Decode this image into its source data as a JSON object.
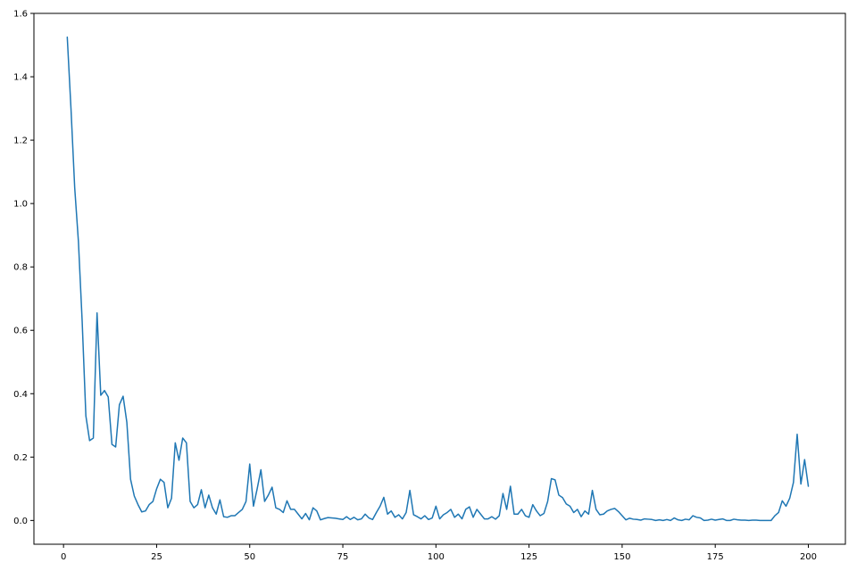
{
  "chart_data": {
    "type": "line",
    "title": "",
    "xlabel": "",
    "ylabel": "",
    "xlim": [
      -7.95,
      209.95
    ],
    "ylim": [
      -0.075,
      1.6
    ],
    "xticks": [
      0,
      25,
      50,
      75,
      100,
      125,
      150,
      175,
      200
    ],
    "yticks": [
      0.0,
      0.2,
      0.4,
      0.6,
      0.8,
      1.0,
      1.2,
      1.4,
      1.6
    ],
    "ytick_labels": [
      "0.0",
      "0.2",
      "0.4",
      "0.6",
      "0.8",
      "1.0",
      "1.2",
      "1.4",
      "1.6"
    ],
    "grid": false,
    "legend": "none",
    "series": [
      {
        "color": "#1f77b4",
        "x": [
          1,
          2,
          3,
          4,
          5,
          6,
          7,
          8,
          9,
          10,
          11,
          12,
          13,
          14,
          15,
          16,
          17,
          18,
          19,
          20,
          21,
          22,
          23,
          24,
          25,
          26,
          27,
          28,
          29,
          30,
          31,
          32,
          33,
          34,
          35,
          36,
          37,
          38,
          39,
          40,
          41,
          42,
          43,
          44,
          45,
          46,
          47,
          48,
          49,
          50,
          51,
          52,
          53,
          54,
          55,
          56,
          57,
          58,
          59,
          60,
          61,
          62,
          63,
          64,
          65,
          66,
          67,
          68,
          69,
          70,
          71,
          72,
          73,
          74,
          75,
          76,
          77,
          78,
          79,
          80,
          81,
          82,
          83,
          84,
          85,
          86,
          87,
          88,
          89,
          90,
          91,
          92,
          93,
          94,
          95,
          96,
          97,
          98,
          99,
          100,
          101,
          102,
          103,
          104,
          105,
          106,
          107,
          108,
          109,
          110,
          111,
          112,
          113,
          114,
          115,
          116,
          117,
          118,
          119,
          120,
          121,
          122,
          123,
          124,
          125,
          126,
          127,
          128,
          129,
          130,
          131,
          132,
          133,
          134,
          135,
          136,
          137,
          138,
          139,
          140,
          141,
          142,
          143,
          144,
          145,
          146,
          147,
          148,
          149,
          150,
          151,
          152,
          153,
          154,
          155,
          156,
          157,
          158,
          159,
          160,
          161,
          162,
          163,
          164,
          165,
          166,
          167,
          168,
          169,
          170,
          171,
          172,
          173,
          174,
          175,
          176,
          177,
          178,
          179,
          180,
          181,
          182,
          183,
          184,
          185,
          186,
          187,
          188,
          189,
          190,
          191,
          192,
          193,
          194,
          195,
          196,
          197,
          198,
          199,
          200
        ],
        "y": [
          1.525,
          1.3,
          1.05,
          0.88,
          0.63,
          0.33,
          0.252,
          0.26,
          0.655,
          0.395,
          0.41,
          0.39,
          0.24,
          0.232,
          0.365,
          0.392,
          0.31,
          0.13,
          0.077,
          0.05,
          0.027,
          0.03,
          0.05,
          0.06,
          0.1,
          0.13,
          0.12,
          0.04,
          0.07,
          0.245,
          0.19,
          0.26,
          0.245,
          0.06,
          0.04,
          0.05,
          0.097,
          0.04,
          0.08,
          0.04,
          0.02,
          0.065,
          0.012,
          0.01,
          0.015,
          0.015,
          0.025,
          0.035,
          0.06,
          0.178,
          0.045,
          0.1,
          0.16,
          0.06,
          0.08,
          0.105,
          0.04,
          0.035,
          0.025,
          0.062,
          0.035,
          0.035,
          0.02,
          0.005,
          0.022,
          0.002,
          0.04,
          0.03,
          0.002,
          0.006,
          0.009,
          0.008,
          0.007,
          0.005,
          0.003,
          0.012,
          0.003,
          0.01,
          0.002,
          0.005,
          0.02,
          0.008,
          0.003,
          0.025,
          0.045,
          0.073,
          0.02,
          0.03,
          0.01,
          0.018,
          0.005,
          0.025,
          0.095,
          0.018,
          0.012,
          0.005,
          0.015,
          0.003,
          0.008,
          0.045,
          0.005,
          0.018,
          0.025,
          0.035,
          0.01,
          0.02,
          0.005,
          0.035,
          0.043,
          0.01,
          0.035,
          0.02,
          0.005,
          0.005,
          0.012,
          0.004,
          0.015,
          0.085,
          0.035,
          0.108,
          0.02,
          0.02,
          0.035,
          0.015,
          0.01,
          0.05,
          0.03,
          0.015,
          0.022,
          0.06,
          0.132,
          0.128,
          0.08,
          0.072,
          0.052,
          0.045,
          0.025,
          0.035,
          0.012,
          0.03,
          0.02,
          0.095,
          0.035,
          0.018,
          0.02,
          0.03,
          0.035,
          0.038,
          0.028,
          0.015,
          0.002,
          0.007,
          0.004,
          0.003,
          0.001,
          0.005,
          0.004,
          0.003,
          0.0,
          0.002,
          0.0,
          0.003,
          0.0,
          0.008,
          0.002,
          0.0,
          0.004,
          0.002,
          0.015,
          0.01,
          0.008,
          0.0,
          0.001,
          0.004,
          0.001,
          0.003,
          0.005,
          0.0,
          0.0,
          0.004,
          0.002,
          0.001,
          0.001,
          0.0,
          0.001,
          0.001,
          0.0,
          0.0,
          0.0,
          0.0,
          0.015,
          0.025,
          0.062,
          0.045,
          0.07,
          0.12,
          0.272,
          0.115,
          0.192,
          0.108
        ]
      }
    ]
  }
}
